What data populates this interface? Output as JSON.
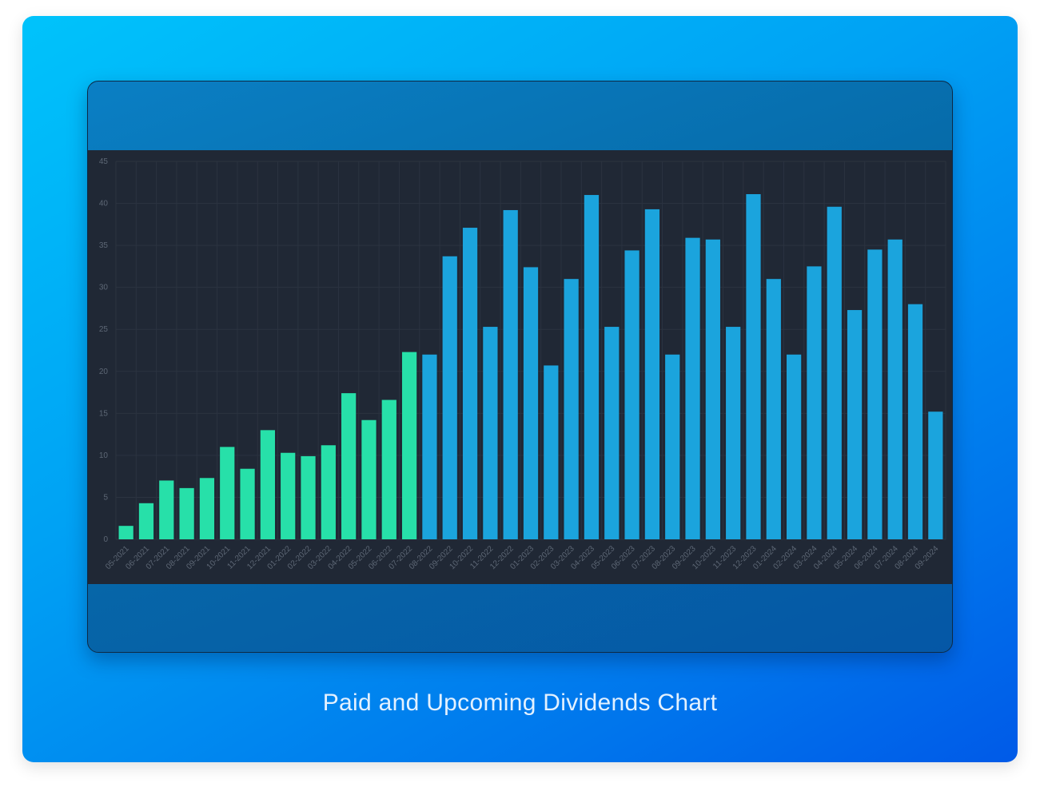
{
  "caption": "Paid and Upcoming Dividends Chart",
  "colors": {
    "paid": "#27e0a9",
    "upcoming": "#1ba4dd",
    "grid": "#2b3340",
    "tick": "#5d6775"
  },
  "chart_data": {
    "type": "bar",
    "title": "",
    "xlabel": "",
    "ylabel": "",
    "ylim": [
      0,
      45
    ],
    "yticks": [
      0,
      5,
      10,
      15,
      20,
      25,
      30,
      35,
      40,
      45
    ],
    "grid": true,
    "categories": [
      "05-2021",
      "06-2021",
      "07-2021",
      "08-2021",
      "09-2021",
      "10-2021",
      "11-2021",
      "12-2021",
      "01-2022",
      "02-2022",
      "03-2022",
      "04-2022",
      "05-2022",
      "06-2022",
      "07-2022",
      "08-2022",
      "09-2022",
      "10-2022",
      "11-2022",
      "12-2022",
      "01-2023",
      "02-2023",
      "03-2023",
      "04-2023",
      "05-2023",
      "06-2023",
      "07-2023",
      "08-2023",
      "09-2023",
      "10-2023",
      "11-2023",
      "12-2023",
      "01-2024",
      "02-2024",
      "03-2024",
      "04-2024",
      "05-2024",
      "06-2024",
      "07-2024",
      "08-2024",
      "09-2024"
    ],
    "series": [
      {
        "values": [
          1.6,
          4.3,
          7.0,
          6.1,
          7.3,
          11.0,
          8.4,
          13.0,
          10.3,
          9.9,
          11.2,
          17.4,
          14.2,
          16.6,
          22.3,
          null,
          null,
          null,
          null,
          null,
          null,
          null,
          null,
          null,
          null,
          null,
          null,
          null,
          null,
          null,
          null,
          null,
          null,
          null,
          null,
          null,
          null,
          null,
          null,
          null,
          null
        ]
      },
      {
        "values": [
          null,
          null,
          null,
          null,
          null,
          null,
          null,
          null,
          null,
          null,
          null,
          null,
          null,
          null,
          null,
          22.0,
          33.7,
          37.1,
          25.3,
          39.2,
          32.4,
          20.7,
          31.0,
          41.0,
          25.3,
          34.4,
          39.3,
          22.0,
          35.9,
          35.7,
          25.3,
          41.1,
          31.0,
          22.0,
          32.5,
          39.6,
          27.3,
          34.5,
          35.7,
          28.0,
          15.2
        ]
      }
    ]
  }
}
